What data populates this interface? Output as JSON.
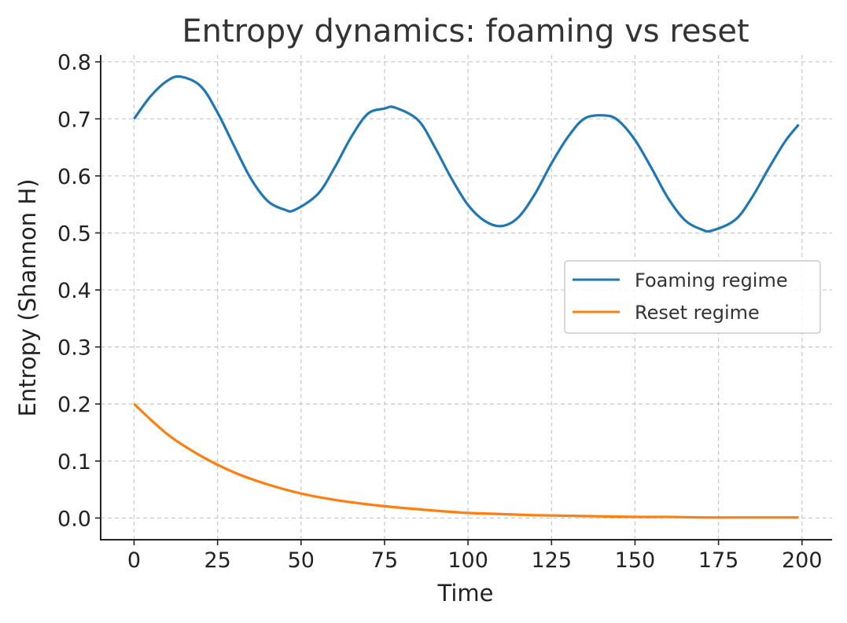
{
  "chart_data": {
    "type": "line",
    "title": "Entropy dynamics: foaming vs reset",
    "xlabel": "Time",
    "ylabel": "Entropy (Shannon H)",
    "xlim": [
      -10,
      209
    ],
    "ylim": [
      -0.038,
      0.812
    ],
    "xticks": [
      0,
      25,
      50,
      75,
      100,
      125,
      150,
      175,
      200
    ],
    "xtick_labels": [
      "0",
      "25",
      "50",
      "75",
      "100",
      "125",
      "150",
      "175",
      "200"
    ],
    "yticks": [
      0.0,
      0.1,
      0.2,
      0.3,
      0.4,
      0.5,
      0.6,
      0.7,
      0.8
    ],
    "ytick_labels": [
      "0.0",
      "0.1",
      "0.2",
      "0.3",
      "0.4",
      "0.5",
      "0.6",
      "0.7",
      "0.8"
    ],
    "grid": true,
    "legend_position": "center-right",
    "series": [
      {
        "name": "Foaming regime",
        "color": "#1f77b4",
        "x": [
          0,
          5,
          10,
          14,
          20,
          25,
          30,
          35,
          40,
          45,
          48,
          55,
          60,
          65,
          70,
          75,
          78,
          85,
          90,
          95,
          100,
          105,
          110,
          115,
          120,
          125,
          130,
          135,
          141,
          145,
          150,
          155,
          160,
          165,
          170,
          173,
          180,
          185,
          190,
          195,
          199
        ],
        "y": [
          0.7,
          0.74,
          0.767,
          0.774,
          0.757,
          0.711,
          0.652,
          0.595,
          0.556,
          0.541,
          0.54,
          0.568,
          0.614,
          0.668,
          0.709,
          0.718,
          0.72,
          0.698,
          0.651,
          0.596,
          0.549,
          0.521,
          0.512,
          0.527,
          0.568,
          0.622,
          0.669,
          0.701,
          0.706,
          0.697,
          0.663,
          0.613,
          0.56,
          0.522,
          0.506,
          0.504,
          0.523,
          0.562,
          0.613,
          0.661,
          0.69
        ]
      },
      {
        "name": "Reset regime",
        "color": "#ff7f0e",
        "x": [
          0,
          10,
          20,
          30,
          40,
          50,
          60,
          70,
          80,
          90,
          100,
          110,
          120,
          130,
          140,
          150,
          160,
          170,
          180,
          190,
          199
        ],
        "y": [
          0.2,
          0.147,
          0.109,
          0.08,
          0.059,
          0.043,
          0.032,
          0.024,
          0.018,
          0.013,
          0.009,
          0.007,
          0.005,
          0.004,
          0.003,
          0.002,
          0.002,
          0.001,
          0.001,
          0.001,
          0.001
        ]
      }
    ]
  }
}
